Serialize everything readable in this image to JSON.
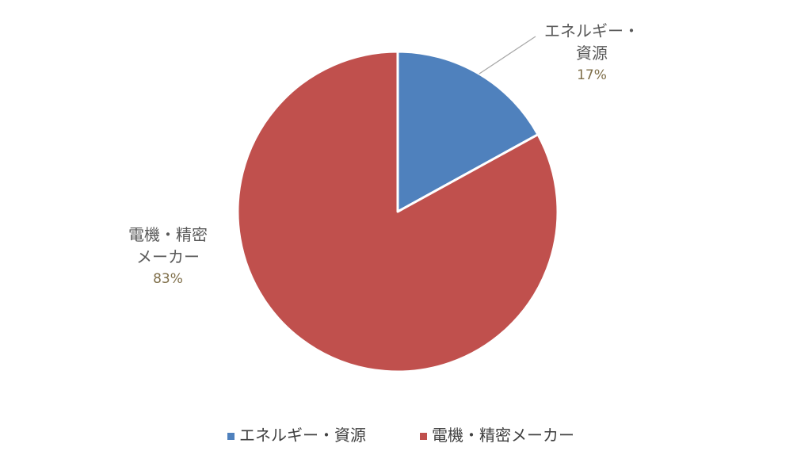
{
  "chart_data": {
    "type": "pie",
    "title": "",
    "start_angle_deg": 0,
    "direction": "clockwise",
    "slices": [
      {
        "name": "エネルギー・資源",
        "label_lines": [
          "エネルギー・",
          "資源"
        ],
        "value": 17,
        "percent_label": "17%",
        "color": "#4f81bd"
      },
      {
        "name": "電機・精密メーカー",
        "label_lines": [
          "電機・精密",
          "メーカー"
        ],
        "value": 83,
        "percent_label": "83%",
        "color": "#c0504d"
      }
    ],
    "legend": {
      "position": "bottom",
      "items": [
        {
          "label": "エネルギー・資源",
          "color": "#4f81bd"
        },
        {
          "label": "電機・精密メーカー",
          "color": "#c0504d"
        }
      ]
    }
  }
}
